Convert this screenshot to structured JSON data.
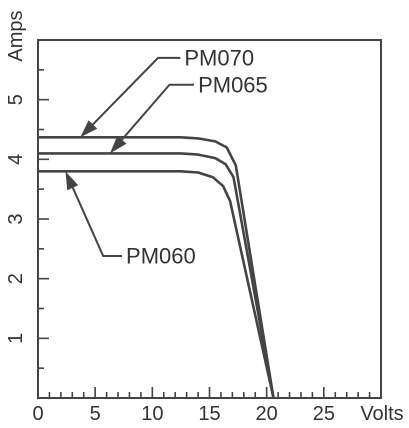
{
  "chart_data": {
    "type": "line",
    "title": "",
    "xlabel": "Volts",
    "ylabel": "Amps",
    "xlim": [
      0,
      30
    ],
    "ylim": [
      0,
      6
    ],
    "x_ticks": [
      "0",
      "5",
      "10",
      "15",
      "20",
      "25"
    ],
    "y_ticks": [
      "1",
      "2",
      "3",
      "4",
      "5"
    ],
    "grid": false,
    "series": [
      {
        "name": "PM070",
        "points": [
          [
            0,
            4.37
          ],
          [
            12.5,
            4.37
          ],
          [
            14,
            4.35
          ],
          [
            15.5,
            4.3
          ],
          [
            16.5,
            4.2
          ],
          [
            17.3,
            3.9
          ],
          [
            20.6,
            0
          ]
        ]
      },
      {
        "name": "PM065",
        "points": [
          [
            0,
            4.1
          ],
          [
            12.5,
            4.1
          ],
          [
            14,
            4.08
          ],
          [
            15.5,
            4.02
          ],
          [
            16.4,
            3.92
          ],
          [
            17.1,
            3.7
          ],
          [
            20.6,
            0
          ]
        ]
      },
      {
        "name": "PM060",
        "points": [
          [
            0,
            3.8
          ],
          [
            12.5,
            3.8
          ],
          [
            14,
            3.78
          ],
          [
            15.3,
            3.7
          ],
          [
            16.2,
            3.55
          ],
          [
            16.8,
            3.3
          ],
          [
            20.6,
            0
          ]
        ]
      }
    ],
    "annotations": [
      {
        "label": "PM070",
        "text_at": [
          12.8,
          5.7
        ],
        "bend_at": [
          10.5,
          5.7
        ],
        "arrow_to": [
          3.7,
          4.37
        ]
      },
      {
        "label": "PM065",
        "text_at": [
          14.0,
          5.25
        ],
        "bend_at": [
          11.5,
          5.25
        ],
        "arrow_to": [
          6.3,
          4.1
        ]
      },
      {
        "label": "PM060",
        "text_at": [
          7.7,
          2.38
        ],
        "bend_at": [
          5.7,
          2.38
        ],
        "arrow_to": [
          2.4,
          3.8
        ]
      }
    ],
    "line_color": "#444444",
    "text_color": "#333333"
  }
}
